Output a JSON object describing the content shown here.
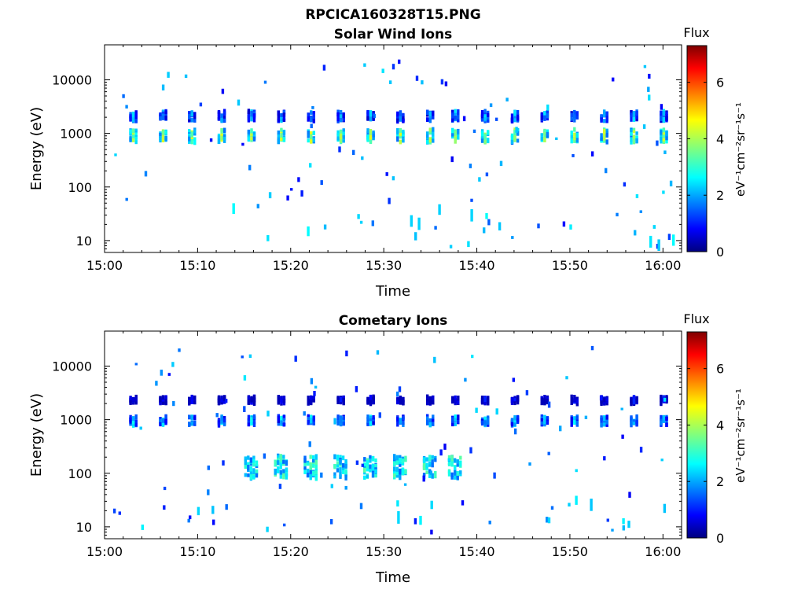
{
  "figure_title": "RPCICA160328T15.PNG",
  "chart_data": [
    {
      "type": "heatmap",
      "title": "Solar Wind Ions",
      "xlabel": "Time",
      "ylabel": "Energy (eV)",
      "x_ticks": [
        "15:00",
        "15:10",
        "15:20",
        "15:30",
        "15:40",
        "15:50",
        "16:00"
      ],
      "x_range_minutes": [
        0,
        62
      ],
      "y_scale": "log",
      "y_ticks": [
        "10",
        "100",
        "1000",
        "10000"
      ],
      "y_range": [
        6,
        45000
      ],
      "colorbar": {
        "title": "Flux",
        "units": "eV⁻¹cm⁻²sr⁻¹s⁻¹",
        "ticks": [
          "0",
          "2",
          "4",
          "6"
        ],
        "range": [
          0,
          7.3
        ]
      },
      "sweep_times_min": [
        3.0,
        6.2,
        9.3,
        12.5,
        15.7,
        18.9,
        22.1,
        25.3,
        28.5,
        31.7,
        34.9,
        37.6,
        40.8,
        44.0,
        47.2,
        50.4,
        53.6,
        56.8,
        60.0
      ],
      "bands": [
        {
          "center_eV": 900,
          "log_half_width": 0.12,
          "level": 4.4
        },
        {
          "center_eV": 2100,
          "log_half_width": 0.09,
          "level": 2.6
        }
      ]
    },
    {
      "type": "heatmap",
      "title": "Cometary Ions",
      "xlabel": "Time",
      "ylabel": "Energy (eV)",
      "x_ticks": [
        "15:00",
        "15:10",
        "15:20",
        "15:30",
        "15:40",
        "15:50",
        "16:00"
      ],
      "x_range_minutes": [
        0,
        62
      ],
      "y_scale": "log",
      "y_ticks": [
        "10",
        "100",
        "1000",
        "10000"
      ],
      "y_range": [
        6,
        45000
      ],
      "colorbar": {
        "title": "Flux",
        "units": "eV⁻¹cm⁻²sr⁻¹s⁻¹",
        "ticks": [
          "0",
          "2",
          "4",
          "6"
        ],
        "range": [
          0,
          7.3
        ]
      },
      "sweep_times_min": [
        3.0,
        6.2,
        9.3,
        12.5,
        15.7,
        18.9,
        22.1,
        25.3,
        28.5,
        31.7,
        34.9,
        37.6,
        40.8,
        44.0,
        47.2,
        50.4,
        53.6,
        56.8,
        60.0
      ],
      "bands": [
        {
          "center_eV": 950,
          "log_half_width": 0.08,
          "level": 2.9
        },
        {
          "center_eV": 2300,
          "log_half_width": 0.06,
          "level": 1.2
        }
      ],
      "low_energy_population": {
        "center_eV": 130,
        "time_min": [
          15,
          40
        ],
        "level": 3.4
      }
    }
  ]
}
